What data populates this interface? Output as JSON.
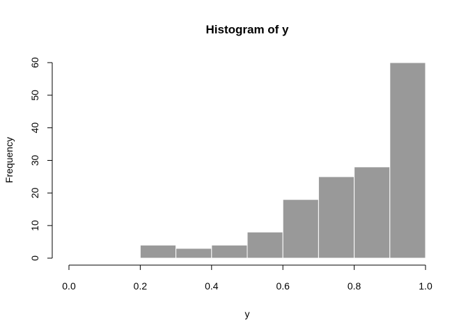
{
  "chart_data": {
    "type": "bar",
    "title": "Histogram of y",
    "xlabel": "y",
    "ylabel": "Frequency",
    "bins": [
      {
        "from": 0.2,
        "to": 0.3,
        "count": 4
      },
      {
        "from": 0.3,
        "to": 0.4,
        "count": 3
      },
      {
        "from": 0.4,
        "to": 0.5,
        "count": 4
      },
      {
        "from": 0.5,
        "to": 0.6,
        "count": 8
      },
      {
        "from": 0.6,
        "to": 0.7,
        "count": 18
      },
      {
        "from": 0.7,
        "to": 0.8,
        "count": 25
      },
      {
        "from": 0.8,
        "to": 0.9,
        "count": 28
      },
      {
        "from": 0.9,
        "to": 1.0,
        "count": 60
      }
    ],
    "xlim": [
      0,
      1
    ],
    "ylim": [
      0,
      60
    ],
    "x_ticks": [
      "0.0",
      "0.2",
      "0.4",
      "0.6",
      "0.8",
      "1.0"
    ],
    "y_ticks": [
      "0",
      "10",
      "20",
      "30",
      "40",
      "50",
      "60"
    ],
    "grid": false,
    "bar_color": "#999999",
    "bar_border_color": "#ffffff"
  }
}
